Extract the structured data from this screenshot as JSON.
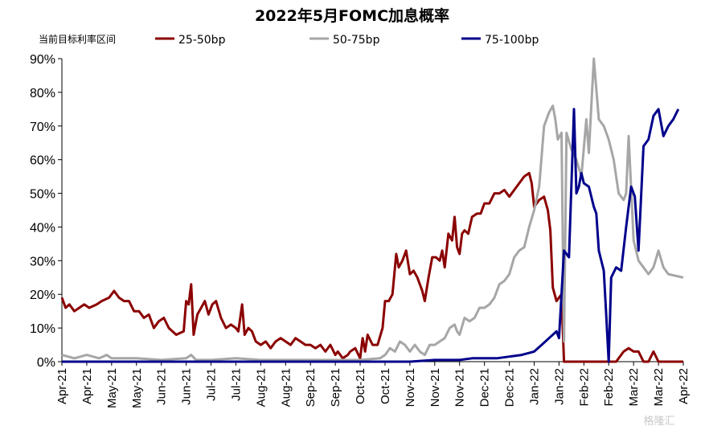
{
  "watermark": "格隆汇",
  "colors": {
    "s1": "#8b0000",
    "s2": "#a6a6a6",
    "s3": "#00008b",
    "axis": "#000000"
  },
  "chart_data": {
    "type": "line",
    "title": "2022年5月FOMC加息概率",
    "legend_header": "当前目标利率区间",
    "legend_position": "top",
    "ylim": [
      0,
      90
    ],
    "yticks": [
      0,
      10,
      20,
      30,
      40,
      50,
      60,
      70,
      80,
      90
    ],
    "ytick_labels": [
      "0%",
      "10%",
      "20%",
      "30%",
      "40%",
      "50%",
      "60%",
      "70%",
      "80%",
      "90%"
    ],
    "grid": false,
    "x_tick_labels": [
      "Apr-21",
      "Apr-21",
      "May-21",
      "May-21",
      "Jun-21",
      "Jun-21",
      "Jul-21",
      "Jul-21",
      "Aug-21",
      "Aug-21",
      "Sep-21",
      "Sep-21",
      "Oct-21",
      "Oct-21",
      "Nov-21",
      "Nov-21",
      "Nov-21",
      "Dec-21",
      "Dec-21",
      "Jan-22",
      "Jan-22",
      "Feb-22",
      "Feb-22",
      "Mar-22",
      "Mar-22",
      "Apr-22"
    ],
    "series": [
      {
        "name": "25-50bp",
        "color": "#8b0000",
        "points": [
          [
            0,
            19
          ],
          [
            0.15,
            16
          ],
          [
            0.3,
            17
          ],
          [
            0.5,
            15
          ],
          [
            0.7,
            16
          ],
          [
            0.9,
            17
          ],
          [
            1.1,
            16
          ],
          [
            1.4,
            17
          ],
          [
            1.6,
            18
          ],
          [
            1.9,
            19
          ],
          [
            2.1,
            21
          ],
          [
            2.3,
            19
          ],
          [
            2.5,
            18
          ],
          [
            2.7,
            18
          ],
          [
            2.9,
            15
          ],
          [
            3.1,
            15
          ],
          [
            3.3,
            13
          ],
          [
            3.5,
            14
          ],
          [
            3.7,
            10
          ],
          [
            3.9,
            12
          ],
          [
            4.1,
            13
          ],
          [
            4.3,
            10
          ],
          [
            4.6,
            8
          ],
          [
            4.9,
            9
          ],
          [
            5.0,
            18
          ],
          [
            5.1,
            17
          ],
          [
            5.2,
            23
          ],
          [
            5.3,
            8
          ],
          [
            5.45,
            14
          ],
          [
            5.6,
            16
          ],
          [
            5.75,
            18
          ],
          [
            5.9,
            14
          ],
          [
            6.05,
            17
          ],
          [
            6.2,
            18
          ],
          [
            6.4,
            13
          ],
          [
            6.6,
            10
          ],
          [
            6.8,
            11
          ],
          [
            7.0,
            10
          ],
          [
            7.1,
            9
          ],
          [
            7.25,
            17
          ],
          [
            7.35,
            8
          ],
          [
            7.5,
            10
          ],
          [
            7.65,
            9
          ],
          [
            7.8,
            6
          ],
          [
            8.0,
            5
          ],
          [
            8.2,
            6
          ],
          [
            8.4,
            4
          ],
          [
            8.6,
            6
          ],
          [
            8.8,
            7
          ],
          [
            9.0,
            6
          ],
          [
            9.2,
            5
          ],
          [
            9.4,
            7
          ],
          [
            9.6,
            6
          ],
          [
            9.8,
            5
          ],
          [
            10.0,
            5
          ],
          [
            10.2,
            4
          ],
          [
            10.4,
            5
          ],
          [
            10.6,
            3
          ],
          [
            10.8,
            5
          ],
          [
            11.0,
            2
          ],
          [
            11.1,
            3
          ],
          [
            11.3,
            1
          ],
          [
            11.5,
            2
          ],
          [
            11.6,
            3
          ],
          [
            11.8,
            4
          ],
          [
            12.0,
            1
          ],
          [
            12.1,
            7
          ],
          [
            12.2,
            3
          ],
          [
            12.3,
            8
          ],
          [
            12.5,
            5
          ],
          [
            12.7,
            5
          ],
          [
            12.9,
            10
          ],
          [
            13.0,
            18
          ],
          [
            13.15,
            18
          ],
          [
            13.3,
            20
          ],
          [
            13.45,
            32
          ],
          [
            13.55,
            28
          ],
          [
            13.7,
            30
          ],
          [
            13.85,
            33
          ],
          [
            14.0,
            26
          ],
          [
            14.15,
            27
          ],
          [
            14.3,
            25
          ],
          [
            14.5,
            21
          ],
          [
            14.6,
            18
          ],
          [
            14.75,
            25
          ],
          [
            14.9,
            31
          ],
          [
            15.05,
            31
          ],
          [
            15.2,
            30
          ],
          [
            15.3,
            33
          ],
          [
            15.4,
            28
          ],
          [
            15.55,
            38
          ],
          [
            15.7,
            36
          ],
          [
            15.8,
            43
          ],
          [
            15.9,
            34
          ],
          [
            16.0,
            32
          ],
          [
            16.1,
            38
          ],
          [
            16.2,
            39
          ],
          [
            16.35,
            38
          ],
          [
            16.5,
            43
          ],
          [
            16.7,
            44
          ],
          [
            16.85,
            44
          ],
          [
            17.0,
            47
          ],
          [
            17.2,
            47
          ],
          [
            17.4,
            50
          ],
          [
            17.6,
            50
          ],
          [
            17.8,
            51
          ],
          [
            18.0,
            49
          ],
          [
            18.2,
            51
          ],
          [
            18.4,
            53
          ],
          [
            18.6,
            55
          ],
          [
            18.8,
            56
          ],
          [
            18.9,
            53
          ],
          [
            19.0,
            46
          ],
          [
            19.2,
            48
          ],
          [
            19.4,
            49
          ],
          [
            19.55,
            45
          ],
          [
            19.65,
            39
          ],
          [
            19.75,
            22
          ],
          [
            19.9,
            18
          ],
          [
            20.1,
            20
          ],
          [
            20.2,
            0
          ],
          [
            21.0,
            0
          ],
          [
            21.5,
            0
          ],
          [
            22.3,
            0
          ],
          [
            22.6,
            3
          ],
          [
            22.8,
            4
          ],
          [
            23.0,
            3
          ],
          [
            23.2,
            3
          ],
          [
            23.4,
            0
          ],
          [
            23.6,
            0
          ],
          [
            23.8,
            3
          ],
          [
            24.0,
            0
          ],
          [
            25.0,
            0
          ]
        ]
      },
      {
        "name": "50-75bp",
        "color": "#a6a6a6",
        "points": [
          [
            0,
            2
          ],
          [
            0.5,
            1
          ],
          [
            1.0,
            2
          ],
          [
            1.5,
            1
          ],
          [
            1.8,
            2
          ],
          [
            2.0,
            1
          ],
          [
            3.0,
            1
          ],
          [
            4.0,
            0.5
          ],
          [
            5.0,
            1
          ],
          [
            5.2,
            2
          ],
          [
            5.4,
            0.5
          ],
          [
            6.0,
            0.5
          ],
          [
            7.0,
            1
          ],
          [
            8.0,
            0.5
          ],
          [
            9.0,
            0.5
          ],
          [
            10.0,
            0.5
          ],
          [
            11.0,
            0.5
          ],
          [
            12.0,
            0.5
          ],
          [
            12.8,
            1
          ],
          [
            13.0,
            2
          ],
          [
            13.2,
            4
          ],
          [
            13.4,
            3
          ],
          [
            13.6,
            6
          ],
          [
            13.8,
            5
          ],
          [
            14.0,
            3
          ],
          [
            14.2,
            5
          ],
          [
            14.4,
            3
          ],
          [
            14.6,
            2
          ],
          [
            14.8,
            5
          ],
          [
            15.0,
            5
          ],
          [
            15.2,
            6
          ],
          [
            15.4,
            7
          ],
          [
            15.6,
            10
          ],
          [
            15.8,
            11
          ],
          [
            15.9,
            9
          ],
          [
            16.0,
            8
          ],
          [
            16.2,
            13
          ],
          [
            16.4,
            12
          ],
          [
            16.6,
            13
          ],
          [
            16.8,
            16
          ],
          [
            17.0,
            16
          ],
          [
            17.2,
            17
          ],
          [
            17.4,
            19
          ],
          [
            17.6,
            23
          ],
          [
            17.8,
            24
          ],
          [
            18.0,
            26
          ],
          [
            18.2,
            31
          ],
          [
            18.4,
            33
          ],
          [
            18.6,
            34
          ],
          [
            18.8,
            40
          ],
          [
            19.0,
            45
          ],
          [
            19.2,
            52
          ],
          [
            19.4,
            70
          ],
          [
            19.6,
            74
          ],
          [
            19.75,
            76
          ],
          [
            19.85,
            72
          ],
          [
            19.95,
            66
          ],
          [
            20.1,
            68
          ],
          [
            20.2,
            6
          ],
          [
            20.3,
            68
          ],
          [
            20.5,
            63
          ],
          [
            20.7,
            60
          ],
          [
            20.9,
            55
          ],
          [
            21.1,
            72
          ],
          [
            21.2,
            62
          ],
          [
            21.4,
            90
          ],
          [
            21.6,
            72
          ],
          [
            21.8,
            70
          ],
          [
            22.0,
            66
          ],
          [
            22.2,
            60
          ],
          [
            22.4,
            50
          ],
          [
            22.6,
            48
          ],
          [
            22.7,
            50
          ],
          [
            22.8,
            67
          ],
          [
            23.0,
            36
          ],
          [
            23.2,
            30
          ],
          [
            23.4,
            28
          ],
          [
            23.6,
            26
          ],
          [
            23.8,
            28
          ],
          [
            24.0,
            33
          ],
          [
            24.2,
            28
          ],
          [
            24.4,
            26
          ],
          [
            25.0,
            25
          ]
        ]
      },
      {
        "name": "75-100bp",
        "color": "#00008b",
        "points": [
          [
            0,
            0
          ],
          [
            12.0,
            0
          ],
          [
            14.0,
            0
          ],
          [
            15.0,
            0.5
          ],
          [
            16.0,
            0.5
          ],
          [
            16.5,
            1
          ],
          [
            17.0,
            1
          ],
          [
            17.5,
            1
          ],
          [
            18.0,
            1.5
          ],
          [
            18.5,
            2
          ],
          [
            19.0,
            3
          ],
          [
            19.3,
            5
          ],
          [
            19.6,
            7
          ],
          [
            19.9,
            9
          ],
          [
            20.0,
            7
          ],
          [
            20.2,
            33
          ],
          [
            20.4,
            31
          ],
          [
            20.6,
            75
          ],
          [
            20.7,
            50
          ],
          [
            20.8,
            52
          ],
          [
            20.9,
            56
          ],
          [
            21.0,
            53
          ],
          [
            21.2,
            52
          ],
          [
            21.4,
            46
          ],
          [
            21.5,
            44
          ],
          [
            21.6,
            33
          ],
          [
            21.8,
            27
          ],
          [
            21.9,
            14
          ],
          [
            22.0,
            0
          ],
          [
            22.1,
            25
          ],
          [
            22.3,
            28
          ],
          [
            22.5,
            27
          ],
          [
            22.7,
            40
          ],
          [
            22.9,
            52
          ],
          [
            23.05,
            49
          ],
          [
            23.2,
            33
          ],
          [
            23.4,
            64
          ],
          [
            23.6,
            66
          ],
          [
            23.8,
            73
          ],
          [
            24.0,
            75
          ],
          [
            24.2,
            67
          ],
          [
            24.4,
            70
          ],
          [
            24.6,
            72
          ],
          [
            24.8,
            75
          ]
        ]
      }
    ]
  }
}
